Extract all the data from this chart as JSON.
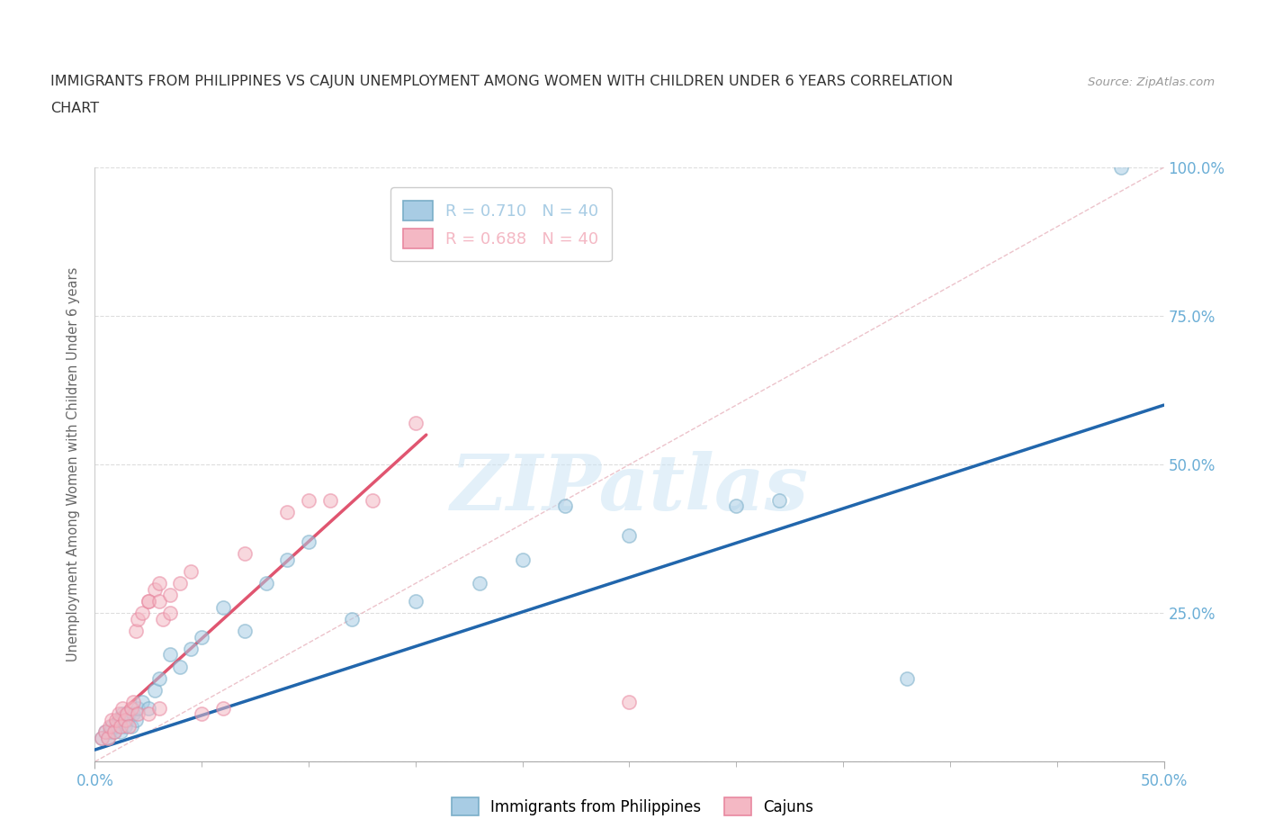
{
  "title_line1": "IMMIGRANTS FROM PHILIPPINES VS CAJUN UNEMPLOYMENT AMONG WOMEN WITH CHILDREN UNDER 6 YEARS CORRELATION",
  "title_line2": "CHART",
  "source_text": "Source: ZipAtlas.com",
  "ylabel": "Unemployment Among Women with Children Under 6 years",
  "xlim": [
    0.0,
    0.5
  ],
  "ylim": [
    0.0,
    1.0
  ],
  "xticks": [
    0.0,
    0.5
  ],
  "xticklabels": [
    "0.0%",
    "50.0%"
  ],
  "yticks": [
    0.0,
    0.25,
    0.5,
    0.75,
    1.0
  ],
  "yticklabels_right": [
    "",
    "25.0%",
    "50.0%",
    "75.0%",
    "100.0%"
  ],
  "legend_entries": [
    {
      "label": "R = 0.710   N = 40",
      "color": "#a8cce4"
    },
    {
      "label": "R = 0.688   N = 40",
      "color": "#f4b8c4"
    }
  ],
  "blue_scatter_x": [
    0.003,
    0.005,
    0.006,
    0.007,
    0.008,
    0.009,
    0.01,
    0.011,
    0.012,
    0.013,
    0.014,
    0.015,
    0.016,
    0.017,
    0.018,
    0.019,
    0.02,
    0.022,
    0.025,
    0.028,
    0.03,
    0.035,
    0.04,
    0.045,
    0.05,
    0.06,
    0.07,
    0.08,
    0.09,
    0.1,
    0.12,
    0.15,
    0.18,
    0.2,
    0.22,
    0.25,
    0.3,
    0.32,
    0.38,
    0.48
  ],
  "blue_scatter_y": [
    0.04,
    0.05,
    0.04,
    0.05,
    0.06,
    0.05,
    0.06,
    0.07,
    0.05,
    0.08,
    0.06,
    0.07,
    0.08,
    0.06,
    0.08,
    0.07,
    0.09,
    0.1,
    0.09,
    0.12,
    0.14,
    0.18,
    0.16,
    0.19,
    0.21,
    0.26,
    0.22,
    0.3,
    0.34,
    0.37,
    0.24,
    0.27,
    0.3,
    0.34,
    0.43,
    0.38,
    0.43,
    0.44,
    0.14,
    1.0
  ],
  "pink_scatter_x": [
    0.003,
    0.005,
    0.006,
    0.007,
    0.008,
    0.009,
    0.01,
    0.011,
    0.012,
    0.013,
    0.014,
    0.015,
    0.016,
    0.017,
    0.018,
    0.019,
    0.02,
    0.022,
    0.025,
    0.028,
    0.03,
    0.032,
    0.035,
    0.04,
    0.045,
    0.05,
    0.06,
    0.07,
    0.09,
    0.1,
    0.11,
    0.13,
    0.15,
    0.025,
    0.03,
    0.035,
    0.02,
    0.025,
    0.03,
    0.25
  ],
  "pink_scatter_y": [
    0.04,
    0.05,
    0.04,
    0.06,
    0.07,
    0.05,
    0.07,
    0.08,
    0.06,
    0.09,
    0.07,
    0.08,
    0.06,
    0.09,
    0.1,
    0.22,
    0.24,
    0.25,
    0.27,
    0.29,
    0.3,
    0.24,
    0.25,
    0.3,
    0.32,
    0.08,
    0.09,
    0.35,
    0.42,
    0.44,
    0.44,
    0.44,
    0.57,
    0.27,
    0.27,
    0.28,
    0.08,
    0.08,
    0.09,
    0.1
  ],
  "blue_line_x": [
    0.0,
    0.5
  ],
  "blue_line_y": [
    0.02,
    0.6
  ],
  "pink_line_x": [
    0.008,
    0.155
  ],
  "pink_line_y": [
    0.07,
    0.55
  ],
  "ref_line_x": [
    0.0,
    0.5
  ],
  "ref_line_y": [
    0.0,
    1.0
  ],
  "watermark": "ZIPatlas",
  "blue_color": "#a8cce4",
  "pink_color": "#f4b8c4",
  "blue_edge_color": "#7aaec8",
  "pink_edge_color": "#e888a0",
  "blue_line_color": "#2166ac",
  "pink_line_color": "#e05570",
  "ref_line_color": "#cccccc",
  "background_color": "#ffffff",
  "grid_color": "#dddddd",
  "title_color": "#333333",
  "axis_label_color": "#666666",
  "tick_label_color": "#6baed6",
  "scatter_size": 120,
  "scatter_alpha": 0.55,
  "scatter_linewidth": 1.2
}
